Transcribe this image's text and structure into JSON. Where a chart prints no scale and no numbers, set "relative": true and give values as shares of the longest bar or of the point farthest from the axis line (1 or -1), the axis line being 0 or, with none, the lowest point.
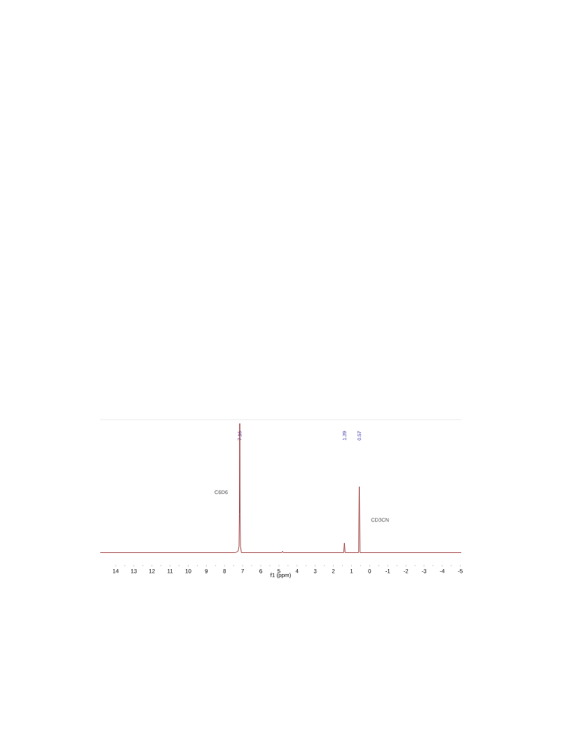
{
  "chart_data": {
    "type": "line",
    "relative": true,
    "xlabel": "f1 (ppm)",
    "x": [
      14.85,
      7.4,
      7.25,
      7.2,
      7.18,
      7.16,
      7.14,
      7.12,
      7.07,
      4.84,
      4.8,
      4.76,
      1.43,
      1.39,
      1.35,
      0.61,
      0.57,
      0.53,
      -5.05
    ],
    "values": [
      0,
      0,
      0.01,
      0.05,
      0.3,
      1,
      0.3,
      0.05,
      0,
      0,
      0.01,
      0,
      0,
      0.074,
      0,
      0,
      0.51,
      0,
      0
    ],
    "color": "#8b1a1a",
    "xlim": [
      14.85,
      -5.05
    ],
    "xticks": [
      14,
      13,
      12,
      11,
      10,
      9,
      8,
      7,
      6,
      5,
      4,
      3,
      2,
      1,
      0,
      -1,
      -2,
      -3,
      -4,
      -5
    ],
    "x2lim": [
      14.85,
      -5.05
    ],
    "x2ticks": [
      7.16,
      1.39,
      0.57
    ],
    "annotations": [
      "C6D6",
      "CD3CN"
    ]
  }
}
